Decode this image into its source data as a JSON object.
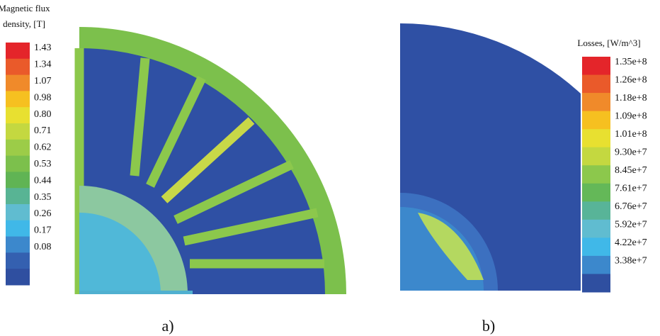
{
  "left_legend": {
    "title_lines": [
      "Magnetic flux",
      "density, [T]"
    ],
    "labels": [
      "1.43",
      "1.34",
      "1.07",
      "0.98",
      "0.80",
      "0.71",
      "0.62",
      "0.53",
      "0.44",
      "0.35",
      "0.26",
      "0.17",
      "0.08"
    ],
    "colors": [
      "#e4252a",
      "#ea5a2a",
      "#f08a2a",
      "#f6c020",
      "#e8e030",
      "#c4d840",
      "#9ccc48",
      "#7cc04c",
      "#60b454",
      "#58b494",
      "#60bcd0",
      "#40b8e8",
      "#3c88cc",
      "#3460b0",
      "#2f4fa0"
    ]
  },
  "right_legend": {
    "title": "Losses, [W/m^3]",
    "labels": [
      "1.35e+8",
      "1.26e+8",
      "1.18e+8",
      "1.09e+8",
      "1.01e+8",
      "9.30e+7",
      "8.45e+7",
      "7.61e+7",
      "6.76e+7",
      "5.92e+7",
      "4.22e+7",
      "3.38e+7"
    ],
    "colors": [
      "#e4252a",
      "#ea5a2a",
      "#f08a2a",
      "#f6c020",
      "#e8e030",
      "#c4d840",
      "#8cc84c",
      "#64b858",
      "#58b498",
      "#60bcd0",
      "#40b8e8",
      "#3c88cc",
      "#2f4fa0"
    ]
  },
  "captions": [
    "a)",
    "b)"
  ]
}
